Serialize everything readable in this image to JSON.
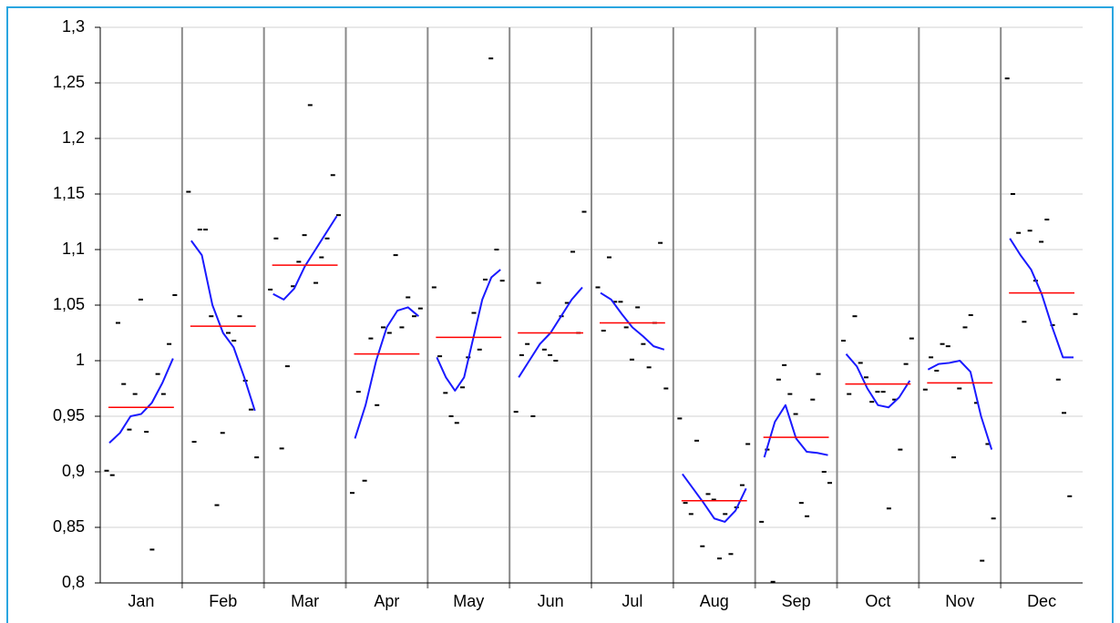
{
  "chart_data": {
    "type": "seasonal",
    "categories": [
      "Jan",
      "Feb",
      "Mar",
      "Apr",
      "May",
      "Jun",
      "Jul",
      "Aug",
      "Sep",
      "Oct",
      "Nov",
      "Dec"
    ],
    "ylim": [
      0.8,
      1.3
    ],
    "yticks": [
      {
        "value": 0.8,
        "label": "0,8"
      },
      {
        "value": 0.85,
        "label": "0,85"
      },
      {
        "value": 0.9,
        "label": "0,9"
      },
      {
        "value": 0.95,
        "label": "0,95"
      },
      1,
      {
        "value": 1.05,
        "label": "1,05"
      },
      {
        "value": 1.1,
        "label": "1,1"
      },
      {
        "value": 1.15,
        "label": "1,15"
      },
      {
        "value": 1.2,
        "label": "1,2"
      },
      {
        "value": 1.25,
        "label": "1,25"
      },
      {
        "value": 1.3,
        "label": "1,3"
      }
    ],
    "grid": true,
    "point_color": "#000000",
    "trend_color": "#1a1aff",
    "mean_color": "#ff0000",
    "groups": [
      {
        "points": [
          0.901,
          0.897,
          1.034,
          0.979,
          0.938,
          0.97,
          1.055,
          0.936,
          0.83,
          0.988,
          0.97,
          1.015,
          1.059
        ],
        "trend": [
          0.926,
          0.935,
          0.95,
          0.952,
          0.962,
          0.98,
          1.002
        ],
        "mean": 0.958
      },
      {
        "points": [
          1.152,
          0.927,
          1.118,
          1.118,
          1.04,
          0.87,
          0.935,
          1.025,
          1.018,
          1.04,
          0.982,
          0.956,
          0.913
        ],
        "trend": [
          1.108,
          1.095,
          1.05,
          1.025,
          1.012,
          0.985,
          0.955
        ],
        "mean": 1.031
      },
      {
        "points": [
          1.064,
          1.11,
          0.921,
          0.995,
          1.067,
          1.089,
          1.113,
          1.23,
          1.07,
          1.093,
          1.11,
          1.167,
          1.131
        ],
        "trend": [
          1.06,
          1.055,
          1.065,
          1.085,
          1.1,
          1.115,
          1.13
        ],
        "mean": 1.086
      },
      {
        "points": [
          0.881,
          0.972,
          0.892,
          1.02,
          0.96,
          1.03,
          1.025,
          1.095,
          1.03,
          1.057,
          1.04,
          1.047
        ],
        "trend": [
          0.93,
          0.96,
          1.0,
          1.03,
          1.045,
          1.048,
          1.04
        ],
        "mean": 1.006
      },
      {
        "points": [
          1.066,
          1.004,
          0.971,
          0.95,
          0.944,
          0.976,
          1.003,
          1.043,
          1.01,
          1.073,
          1.272,
          1.1,
          1.072
        ],
        "trend": [
          1.003,
          0.985,
          0.973,
          0.985,
          1.02,
          1.055,
          1.075,
          1.082
        ],
        "mean": 1.021
      },
      {
        "points": [
          0.954,
          1.005,
          1.015,
          0.95,
          1.07,
          1.01,
          1.005,
          1.0,
          1.04,
          1.052,
          1.098,
          1.025,
          1.134
        ],
        "trend": [
          0.985,
          1.0,
          1.015,
          1.025,
          1.04,
          1.055,
          1.066
        ],
        "mean": 1.025
      },
      {
        "points": [
          1.066,
          1.027,
          1.093,
          1.053,
          1.053,
          1.03,
          1.001,
          1.048,
          1.015,
          0.994,
          1.034,
          1.106,
          0.975
        ],
        "trend": [
          1.061,
          1.055,
          1.042,
          1.03,
          1.022,
          1.013,
          1.01
        ],
        "mean": 1.034
      },
      {
        "points": [
          0.948,
          0.872,
          0.862,
          0.928,
          0.833,
          0.88,
          0.875,
          0.822,
          0.862,
          0.826,
          0.868,
          0.888,
          0.925
        ],
        "trend": [
          0.898,
          0.885,
          0.872,
          0.858,
          0.855,
          0.865,
          0.885
        ],
        "mean": 0.874
      },
      {
        "points": [
          0.855,
          0.92,
          0.801,
          0.983,
          0.996,
          0.97,
          0.952,
          0.872,
          0.86,
          0.965,
          0.988,
          0.9,
          0.89
        ],
        "trend": [
          0.913,
          0.945,
          0.96,
          0.93,
          0.918,
          0.917,
          0.915
        ],
        "mean": 0.931
      },
      {
        "points": [
          1.018,
          0.97,
          1.04,
          0.998,
          0.985,
          0.963,
          0.972,
          0.972,
          0.867,
          0.965,
          0.92,
          0.997,
          1.02
        ],
        "trend": [
          1.006,
          0.995,
          0.975,
          0.96,
          0.958,
          0.967,
          0.982
        ],
        "mean": 0.979
      },
      {
        "points": [
          0.974,
          1.003,
          0.991,
          1.015,
          1.013,
          0.913,
          0.975,
          1.03,
          1.041,
          0.962,
          0.82,
          0.925,
          0.858
        ],
        "trend": [
          0.992,
          0.997,
          0.998,
          1.0,
          0.99,
          0.95,
          0.92
        ],
        "mean": 0.98
      },
      {
        "points": [
          1.254,
          1.15,
          1.115,
          1.035,
          1.117,
          1.072,
          1.107,
          1.127,
          1.032,
          0.983,
          0.953,
          0.878,
          1.042
        ],
        "trend": [
          1.11,
          1.095,
          1.082,
          1.06,
          1.03,
          1.003,
          1.003
        ],
        "mean": 1.061
      }
    ]
  }
}
